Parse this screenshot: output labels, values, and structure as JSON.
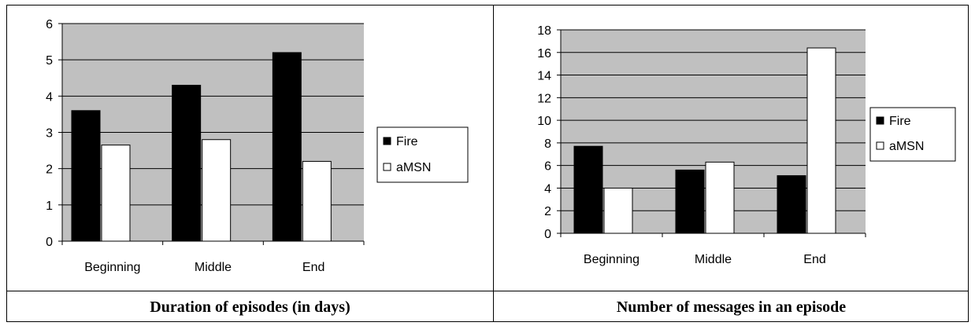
{
  "chart_data": [
    {
      "type": "bar",
      "categories": [
        "Beginning",
        "Middle",
        "End"
      ],
      "series": [
        {
          "name": "Fire",
          "values": [
            3.6,
            4.3,
            5.2
          ],
          "color": "#000000"
        },
        {
          "name": "aMSN",
          "values": [
            2.65,
            2.8,
            2.2
          ],
          "color": "#ffffff"
        }
      ],
      "ylim": [
        0,
        6
      ],
      "yticks": [
        0,
        1,
        2,
        3,
        4,
        5,
        6
      ],
      "grid": true,
      "plot_background": "#c0c0c0",
      "legend_position": "right",
      "caption": "Duration of episodes (in days)"
    },
    {
      "type": "bar",
      "categories": [
        "Beginning",
        "Middle",
        "End"
      ],
      "series": [
        {
          "name": "Fire",
          "values": [
            7.7,
            5.6,
            5.1
          ],
          "color": "#000000"
        },
        {
          "name": "aMSN",
          "values": [
            4.0,
            6.3,
            16.4
          ],
          "color": "#ffffff"
        }
      ],
      "ylim": [
        0,
        18
      ],
      "yticks": [
        0,
        2,
        4,
        6,
        8,
        10,
        12,
        14,
        16,
        18
      ],
      "grid": true,
      "plot_background": "#c0c0c0",
      "legend_position": "right",
      "caption": "Number of messages in an episode"
    }
  ]
}
